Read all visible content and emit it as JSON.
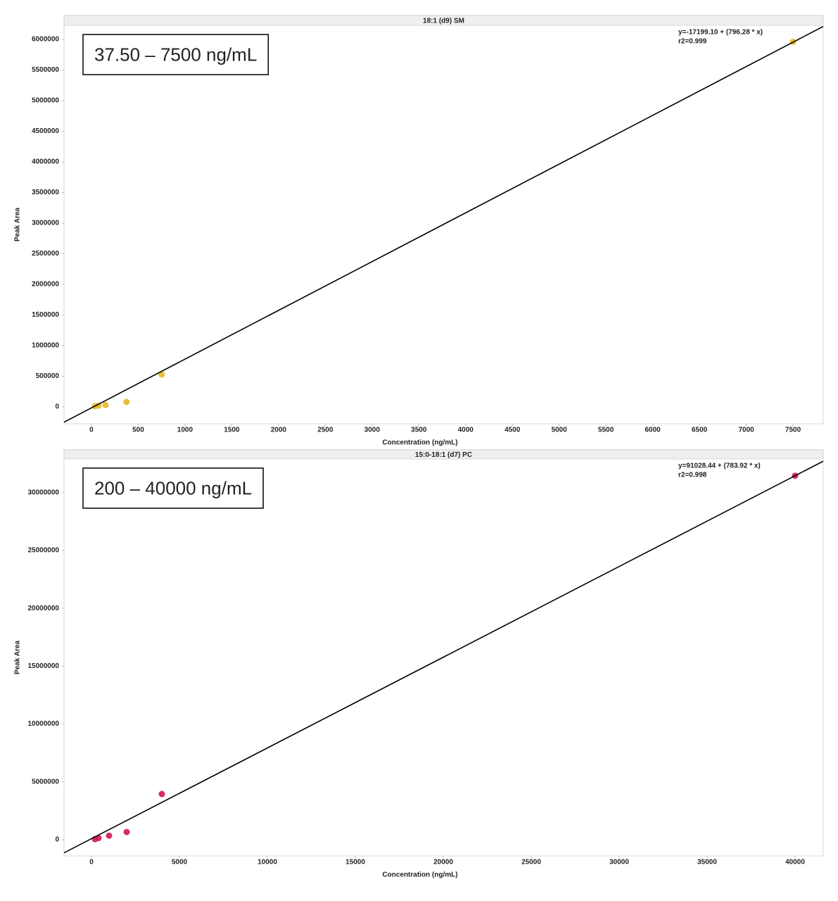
{
  "chart_data": [
    {
      "type": "scatter",
      "title": "18:1 (d9) SM",
      "annotation": "37.50 – 7500 ng/mL",
      "equation": "y=-17199.10 + (796.28 * x)",
      "r2": "r2=0.999",
      "xlabel": "Concentration (ng/mL)",
      "ylabel": "Peak Area",
      "xlim": [
        -293,
        7823
      ],
      "ylim": [
        -276000,
        6230000
      ],
      "xticks": [
        0,
        500,
        1000,
        1500,
        2000,
        2500,
        3000,
        3500,
        4000,
        4500,
        5000,
        5500,
        6000,
        6500,
        7000,
        7500
      ],
      "yticks": [
        0,
        500000,
        1000000,
        1500000,
        2000000,
        2500000,
        3000000,
        3500000,
        4000000,
        4500000,
        5000000,
        5500000,
        6000000
      ],
      "series": [
        {
          "type": "scatter",
          "color": "#e6b722",
          "x": [
            37.5,
            75,
            150,
            375,
            750,
            7500
          ],
          "values": [
            10000,
            20000,
            30000,
            80000,
            530000,
            5960000
          ]
        },
        {
          "type": "line",
          "color": "#000000",
          "x": [
            -293,
            7823
          ],
          "values": [
            -250500,
            6211900
          ]
        }
      ]
    },
    {
      "type": "scatter",
      "title": "15:0-18:1 (d7) PC",
      "annotation": "200 – 40000 ng/mL",
      "equation": "y=91028.44 + (783.92 * x)",
      "r2": "r2=0.998",
      "xlabel": "Concentration (ng/mL)",
      "ylabel": "Peak Area",
      "xlim": [
        -1560,
        41600
      ],
      "ylim": [
        -1400000,
        32900000
      ],
      "xticks": [
        0,
        5000,
        10000,
        15000,
        20000,
        25000,
        30000,
        35000,
        40000
      ],
      "yticks": [
        0,
        5000000,
        10000000,
        15000000,
        20000000,
        25000000,
        30000000
      ],
      "series": [
        {
          "type": "scatter",
          "color": "#d4145a",
          "x": [
            200,
            400,
            1000,
            2000,
            4000,
            40000
          ],
          "values": [
            50000,
            150000,
            350000,
            670000,
            3950000,
            31450000
          ]
        },
        {
          "type": "line",
          "color": "#000000",
          "x": [
            -1560,
            41600
          ],
          "values": [
            -1131900,
            32702100
          ]
        }
      ]
    }
  ]
}
